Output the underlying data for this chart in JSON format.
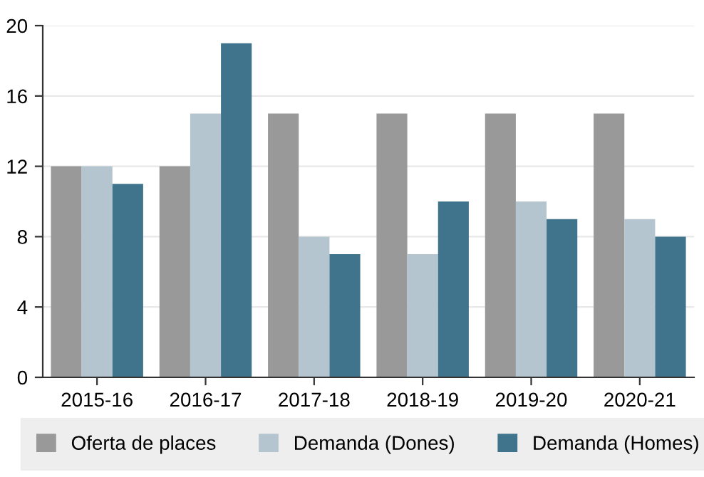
{
  "chart_data": {
    "type": "bar",
    "categories": [
      "2015-16",
      "2016-17",
      "2017-18",
      "2018-19",
      "2019-20",
      "2020-21"
    ],
    "series": [
      {
        "name": "Oferta de places",
        "color": "#999999",
        "values": [
          12,
          12,
          15,
          15,
          15,
          15
        ]
      },
      {
        "name": "Demanda (Dones)",
        "color": "#b4c5d0",
        "values": [
          12,
          15,
          8,
          7,
          10,
          9
        ]
      },
      {
        "name": "Demanda (Homes)",
        "color": "#40738c",
        "values": [
          11,
          19,
          7,
          10,
          9,
          8
        ]
      }
    ],
    "ylim": [
      0,
      20
    ],
    "yticks": [
      0,
      4,
      8,
      12,
      16,
      20
    ],
    "grid": "y",
    "legend": "bottom"
  }
}
